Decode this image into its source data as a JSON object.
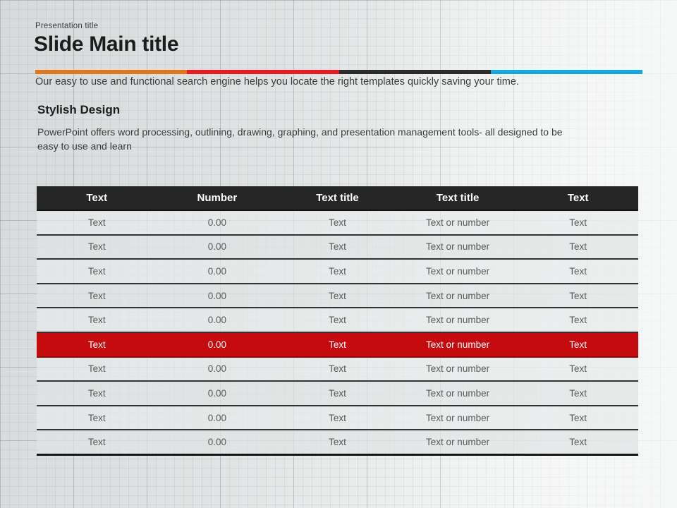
{
  "slide": {
    "kicker": "Presentation title",
    "title": "Slide Main title",
    "subtitle": "Our easy to use and functional search engine helps you locate the right templates quickly saving your time.",
    "section": {
      "heading": "Stylish Design",
      "body": "PowerPoint offers word processing, outlining, drawing, graphing, and presentation management tools- all designed to be easy to use and learn"
    },
    "accent_bar": {
      "colors": [
        "#e0771f",
        "#ec1b23",
        "#2b2b2b",
        "#14a7e0"
      ]
    }
  },
  "table": {
    "headers": [
      "Text",
      "Number",
      "Text title",
      "Text title",
      "Text"
    ],
    "highlighted_row_index": 5,
    "highlight_color": "#c60b0f",
    "header_bg": "#262626",
    "rows": [
      [
        "Text",
        "0.00",
        "Text",
        "Text or number",
        "Text"
      ],
      [
        "Text",
        "0.00",
        "Text",
        "Text or number",
        "Text"
      ],
      [
        "Text",
        "0.00",
        "Text",
        "Text or number",
        "Text"
      ],
      [
        "Text",
        "0.00",
        "Text",
        "Text or number",
        "Text"
      ],
      [
        "Text",
        "0.00",
        "Text",
        "Text or number",
        "Text"
      ],
      [
        "Text",
        "0.00",
        "Text",
        "Text or number",
        "Text"
      ],
      [
        "Text",
        "0.00",
        "Text",
        "Text or number",
        "Text"
      ],
      [
        "Text",
        "0.00",
        "Text",
        "Text or number",
        "Text"
      ],
      [
        "Text",
        "0.00",
        "Text",
        "Text or number",
        "Text"
      ],
      [
        "Text",
        "0.00",
        "Text",
        "Text or number",
        "Text"
      ]
    ]
  }
}
